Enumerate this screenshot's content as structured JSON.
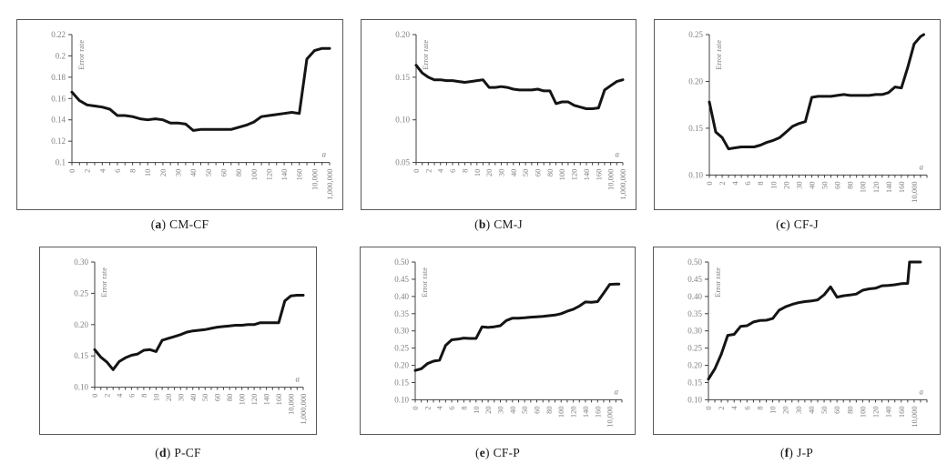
{
  "figure": {
    "background": "#ffffff",
    "series_color": "#141414",
    "axis_color": "#404040",
    "tick_label_color": "#808080",
    "box_border_color": "#595959",
    "caption_color": "#1a1a1a"
  },
  "chart_data": {
    "note": "see charts[] — six line charts of Error rate vs parameter a"
  },
  "charts": [
    {
      "type": "line",
      "caption": {
        "open": "(",
        "label": "a",
        "close": ")",
        "title": "CM-CF"
      },
      "ylabel": "Error rate",
      "xlabel": "a",
      "y_min": 0.1,
      "y_max": 0.22,
      "y_ticks": [
        "0.22",
        "0.2",
        "0.18",
        "0.16",
        "0.14",
        "0.12",
        "0.1"
      ],
      "x_labels": [
        "0",
        "2",
        "4",
        "6",
        "8",
        "10",
        "20",
        "30",
        "40",
        "50",
        "60",
        "80",
        "100",
        "120",
        "140",
        "160",
        "10,000",
        "1,000,000"
      ],
      "total_slots": 35,
      "points": [
        [
          0,
          0.166
        ],
        [
          1,
          0.158
        ],
        [
          2,
          0.154
        ],
        [
          3,
          0.153
        ],
        [
          4,
          0.152
        ],
        [
          5,
          0.15
        ],
        [
          6,
          0.144
        ],
        [
          7,
          0.144
        ],
        [
          8,
          0.143
        ],
        [
          9,
          0.141
        ],
        [
          10,
          0.14
        ],
        [
          11,
          0.141
        ],
        [
          12,
          0.14
        ],
        [
          13,
          0.137
        ],
        [
          14,
          0.137
        ],
        [
          15,
          0.136
        ],
        [
          16,
          0.13
        ],
        [
          17,
          0.131
        ],
        [
          18,
          0.131
        ],
        [
          19,
          0.131
        ],
        [
          20,
          0.131
        ],
        [
          21,
          0.131
        ],
        [
          22,
          0.133
        ],
        [
          23,
          0.135
        ],
        [
          24,
          0.138
        ],
        [
          25,
          0.143
        ],
        [
          26,
          0.144
        ],
        [
          27,
          0.145
        ],
        [
          28,
          0.146
        ],
        [
          29,
          0.147
        ],
        [
          30,
          0.146
        ],
        [
          31,
          0.197
        ],
        [
          32,
          0.205
        ],
        [
          33,
          0.207
        ],
        [
          34,
          0.207
        ]
      ]
    },
    {
      "type": "line",
      "caption": {
        "open": "(",
        "label": "b",
        "close": ")",
        "title": "CM-J"
      },
      "ylabel": "Error rate",
      "xlabel": "a",
      "y_min": 0.05,
      "y_max": 0.2,
      "y_ticks": [
        "0.20",
        "0.15",
        "0.10",
        "0.05"
      ],
      "x_labels": [
        "0",
        "2",
        "4",
        "6",
        "8",
        "10",
        "20",
        "30",
        "40",
        "50",
        "60",
        "80",
        "100",
        "120",
        "140",
        "160",
        "10,000",
        "1,000,000"
      ],
      "total_slots": 35,
      "points": [
        [
          0,
          0.164
        ],
        [
          1,
          0.155
        ],
        [
          2,
          0.15
        ],
        [
          3,
          0.147
        ],
        [
          4,
          0.147
        ],
        [
          5,
          0.146
        ],
        [
          6,
          0.146
        ],
        [
          7,
          0.145
        ],
        [
          8,
          0.144
        ],
        [
          9,
          0.145
        ],
        [
          10,
          0.146
        ],
        [
          11,
          0.147
        ],
        [
          12,
          0.138
        ],
        [
          13,
          0.138
        ],
        [
          14,
          0.139
        ],
        [
          15,
          0.138
        ],
        [
          16,
          0.136
        ],
        [
          17,
          0.135
        ],
        [
          18,
          0.135
        ],
        [
          19,
          0.135
        ],
        [
          20,
          0.136
        ],
        [
          21,
          0.134
        ],
        [
          22,
          0.134
        ],
        [
          23,
          0.119
        ],
        [
          24,
          0.121
        ],
        [
          25,
          0.121
        ],
        [
          26,
          0.117
        ],
        [
          27,
          0.115
        ],
        [
          28,
          0.113
        ],
        [
          29,
          0.113
        ],
        [
          30,
          0.114
        ],
        [
          31,
          0.135
        ],
        [
          32,
          0.14
        ],
        [
          33,
          0.145
        ],
        [
          34,
          0.147
        ]
      ]
    },
    {
      "type": "line",
      "caption": {
        "open": "(",
        "label": "c",
        "close": ")",
        "title": "CF-J"
      },
      "ylabel": "Error rate",
      "xlabel": "a",
      "y_min": 0.1,
      "y_max": 0.25,
      "y_ticks": [
        "0.25",
        "0.20",
        "0.15",
        "0.10"
      ],
      "x_labels": [
        "0",
        "2",
        "4",
        "6",
        "8",
        "10",
        "20",
        "30",
        "40",
        "50",
        "60",
        "80",
        "100",
        "120",
        "140",
        "160",
        "10,000"
      ],
      "total_slots": 35,
      "points": [
        [
          0,
          0.178
        ],
        [
          1,
          0.146
        ],
        [
          2,
          0.14
        ],
        [
          3,
          0.128
        ],
        [
          4,
          0.129
        ],
        [
          5,
          0.13
        ],
        [
          6,
          0.13
        ],
        [
          7,
          0.13
        ],
        [
          8,
          0.132
        ],
        [
          9,
          0.135
        ],
        [
          10,
          0.137
        ],
        [
          11,
          0.14
        ],
        [
          12,
          0.146
        ],
        [
          13,
          0.152
        ],
        [
          14,
          0.155
        ],
        [
          15,
          0.157
        ],
        [
          16,
          0.183
        ],
        [
          17,
          0.184
        ],
        [
          18,
          0.184
        ],
        [
          19,
          0.184
        ],
        [
          20,
          0.185
        ],
        [
          21,
          0.186
        ],
        [
          22,
          0.185
        ],
        [
          23,
          0.185
        ],
        [
          24,
          0.185
        ],
        [
          25,
          0.185
        ],
        [
          26,
          0.186
        ],
        [
          27,
          0.186
        ],
        [
          28,
          0.188
        ],
        [
          29,
          0.194
        ],
        [
          30,
          0.193
        ],
        [
          31,
          0.215
        ],
        [
          32,
          0.24
        ],
        [
          33,
          0.248
        ],
        [
          33.5,
          0.25
        ]
      ]
    },
    {
      "type": "line",
      "caption": {
        "open": "(",
        "label": "d",
        "close": ")",
        "title": "P-CF"
      },
      "ylabel": "Error rate",
      "xlabel": "a",
      "y_min": 0.1,
      "y_max": 0.3,
      "y_ticks": [
        "0.30",
        "0.25",
        "0.20",
        "0.15",
        "0.10"
      ],
      "x_labels": [
        "0",
        "2",
        "4",
        "6",
        "8",
        "10",
        "20",
        "30",
        "40",
        "50",
        "60",
        "80",
        "100",
        "120",
        "140",
        "160",
        "10,000",
        "1,000,000"
      ],
      "total_slots": 35,
      "points": [
        [
          0,
          0.16
        ],
        [
          1,
          0.148
        ],
        [
          2,
          0.14
        ],
        [
          3,
          0.128
        ],
        [
          4,
          0.141
        ],
        [
          5,
          0.147
        ],
        [
          6,
          0.151
        ],
        [
          7,
          0.153
        ],
        [
          8,
          0.159
        ],
        [
          9,
          0.16
        ],
        [
          10,
          0.157
        ],
        [
          11,
          0.175
        ],
        [
          12,
          0.178
        ],
        [
          13,
          0.181
        ],
        [
          14,
          0.184
        ],
        [
          15,
          0.188
        ],
        [
          16,
          0.19
        ],
        [
          17,
          0.191
        ],
        [
          18,
          0.192
        ],
        [
          19,
          0.194
        ],
        [
          20,
          0.196
        ],
        [
          21,
          0.197
        ],
        [
          22,
          0.198
        ],
        [
          23,
          0.199
        ],
        [
          24,
          0.199
        ],
        [
          25,
          0.2
        ],
        [
          26,
          0.2
        ],
        [
          27,
          0.203
        ],
        [
          28,
          0.203
        ],
        [
          29,
          0.203
        ],
        [
          30,
          0.203
        ],
        [
          31,
          0.238
        ],
        [
          32,
          0.246
        ],
        [
          33,
          0.247
        ],
        [
          34,
          0.247
        ]
      ]
    },
    {
      "type": "line",
      "caption": {
        "open": "(",
        "label": "e",
        "close": ")",
        "title": "CF-P"
      },
      "ylabel": "Error rate",
      "xlabel": "a",
      "y_min": 0.1,
      "y_max": 0.5,
      "y_ticks": [
        "0.50",
        "0.45",
        "0.40",
        "0.35",
        "0.30",
        "0.25",
        "0.20",
        "0.15",
        "0.10"
      ],
      "x_labels": [
        "0",
        "2",
        "4",
        "6",
        "8",
        "10",
        "20",
        "30",
        "40",
        "50",
        "60",
        "80",
        "100",
        "120",
        "140",
        "160",
        "10,000"
      ],
      "total_slots": 35,
      "points": [
        [
          0,
          0.185
        ],
        [
          1,
          0.19
        ],
        [
          2,
          0.205
        ],
        [
          3,
          0.212
        ],
        [
          4,
          0.215
        ],
        [
          5,
          0.258
        ],
        [
          6,
          0.274
        ],
        [
          7,
          0.276
        ],
        [
          8,
          0.279
        ],
        [
          9,
          0.278
        ],
        [
          10,
          0.278
        ],
        [
          11,
          0.312
        ],
        [
          12,
          0.31
        ],
        [
          13,
          0.312
        ],
        [
          14,
          0.315
        ],
        [
          15,
          0.33
        ],
        [
          16,
          0.337
        ],
        [
          17,
          0.337
        ],
        [
          18,
          0.338
        ],
        [
          19,
          0.34
        ],
        [
          20,
          0.341
        ],
        [
          21,
          0.342
        ],
        [
          22,
          0.344
        ],
        [
          23,
          0.346
        ],
        [
          24,
          0.35
        ],
        [
          25,
          0.357
        ],
        [
          26,
          0.363
        ],
        [
          27,
          0.372
        ],
        [
          28,
          0.384
        ],
        [
          29,
          0.383
        ],
        [
          30,
          0.385
        ],
        [
          31,
          0.41
        ],
        [
          32,
          0.435
        ],
        [
          33,
          0.436
        ],
        [
          33.5,
          0.436
        ]
      ]
    },
    {
      "type": "line",
      "caption": {
        "open": "(",
        "label": "f",
        "close": ")",
        "title": "J-P"
      },
      "ylabel": "Error rate",
      "xlabel": "a",
      "y_min": 0.1,
      "y_max": 0.5,
      "y_ticks": [
        "0.50",
        "0.45",
        "0.40",
        "0.35",
        "0.30",
        "0.25",
        "0.20",
        "0.15",
        "0.10"
      ],
      "x_labels": [
        "0",
        "2",
        "4",
        "6",
        "8",
        "10",
        "20",
        "30",
        "40",
        "50",
        "60",
        "80",
        "100",
        "120",
        "140",
        "160",
        "10,000"
      ],
      "total_slots": 35,
      "points": [
        [
          0,
          0.16
        ],
        [
          1,
          0.19
        ],
        [
          2,
          0.232
        ],
        [
          3,
          0.287
        ],
        [
          4,
          0.29
        ],
        [
          5,
          0.313
        ],
        [
          6,
          0.315
        ],
        [
          7,
          0.326
        ],
        [
          8,
          0.33
        ],
        [
          9,
          0.331
        ],
        [
          10,
          0.336
        ],
        [
          11,
          0.36
        ],
        [
          12,
          0.37
        ],
        [
          13,
          0.377
        ],
        [
          14,
          0.382
        ],
        [
          15,
          0.385
        ],
        [
          16,
          0.387
        ],
        [
          17,
          0.39
        ],
        [
          18,
          0.405
        ],
        [
          19,
          0.428
        ],
        [
          20,
          0.398
        ],
        [
          21,
          0.402
        ],
        [
          22,
          0.404
        ],
        [
          23,
          0.407
        ],
        [
          24,
          0.418
        ],
        [
          25,
          0.422
        ],
        [
          26,
          0.424
        ],
        [
          27,
          0.431
        ],
        [
          28,
          0.432
        ],
        [
          29,
          0.434
        ],
        [
          30,
          0.437
        ],
        [
          31,
          0.438
        ],
        [
          31.3,
          0.5
        ],
        [
          33,
          0.5
        ]
      ]
    }
  ]
}
